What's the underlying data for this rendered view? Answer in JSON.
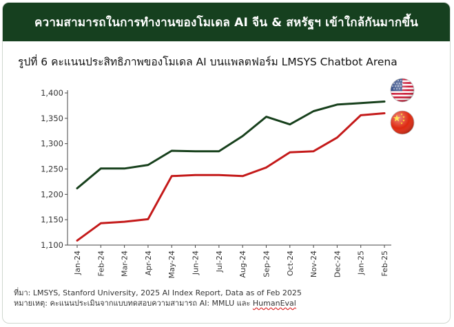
{
  "header": {
    "title": "ความสามารถในการทำงานของโมเดล AI จีน & สหรัฐฯ เข้าใกล้กันมากขึ้น"
  },
  "figure": {
    "title": "รูปที่ 6 คะแนนประสิทธิภาพของโมเดล AI บนแพลตฟอร์ม LMSYS Chatbot Arena"
  },
  "footer": {
    "source": "ที่มา: LMSYS, Stanford University, 2025 AI Index Report, Data as of Feb 2025",
    "note_prefix": "หมายเหตุ: คะแนนประเมินจากแบบทดสอบความสามารถ AI: MMLU และ ",
    "note_underlined": "HumanEval"
  },
  "colors": {
    "header_bg": "#16401f",
    "us_line": "#17401c",
    "cn_line": "#c41a1a"
  },
  "chart_data": {
    "type": "line",
    "title": "",
    "xlabel": "",
    "ylabel": "",
    "ylim": [
      1100,
      1400
    ],
    "yticks": [
      1100,
      1150,
      1200,
      1250,
      1300,
      1350,
      1400
    ],
    "ytick_labels": [
      "1,100",
      "1,150",
      "1,200",
      "1,250",
      "1,300",
      "1,350",
      "1,400"
    ],
    "x": [
      "Jan-24",
      "Feb-24",
      "Mar-24",
      "Apr-24",
      "May-24",
      "Jun-24",
      "Jul-24",
      "Aug-24",
      "Sep-24",
      "Oct-24",
      "Nov-24",
      "Dec-24",
      "Jan-25",
      "Feb-25"
    ],
    "series": [
      {
        "key": "us",
        "icon": "us-flag-icon",
        "values": [
          1212,
          1251,
          1251,
          1258,
          1286,
          1285,
          1285,
          1315,
          1353,
          1338,
          1364,
          1377,
          1380,
          1383
        ]
      },
      {
        "key": "cn",
        "icon": "china-flag-icon",
        "values": [
          1109,
          1143,
          1146,
          1151,
          1236,
          1238,
          1238,
          1236,
          1253,
          1283,
          1285,
          1312,
          1356,
          1360
        ]
      }
    ],
    "grid": false,
    "legend": "flag icons at line ends"
  }
}
